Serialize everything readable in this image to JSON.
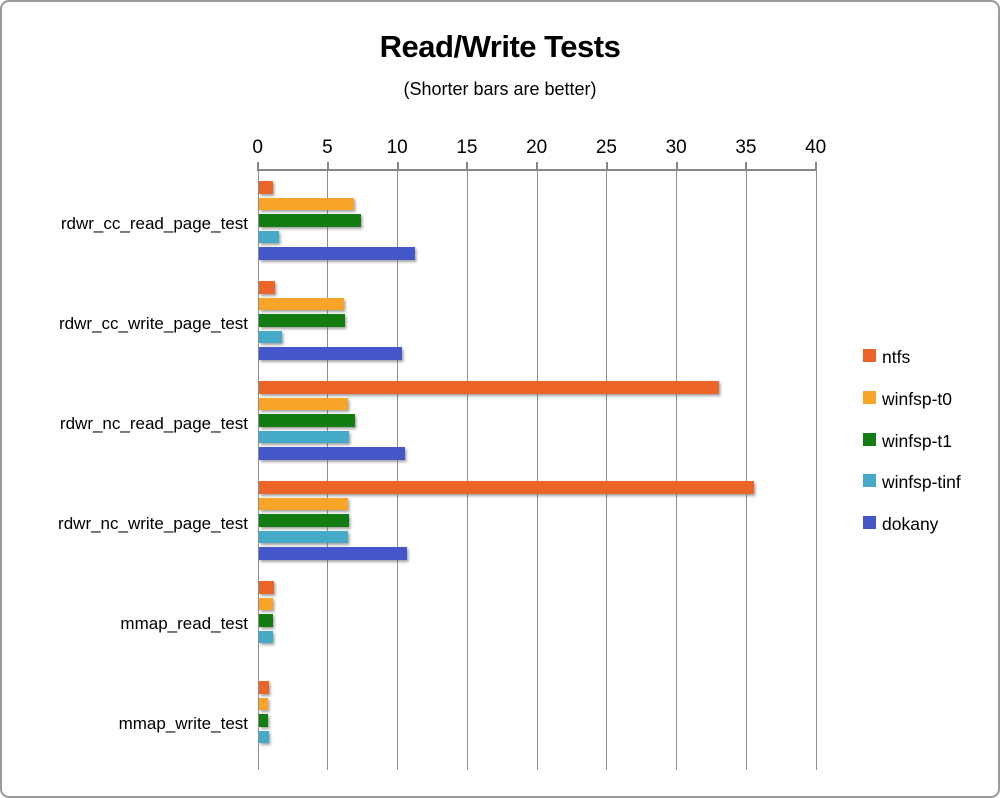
{
  "chart_data": {
    "type": "bar",
    "orientation": "horizontal",
    "title": "Read/Write Tests",
    "subtitle": "(Shorter bars are better)",
    "categories": [
      "rdwr_cc_read_page_test",
      "rdwr_cc_write_page_test",
      "rdwr_nc_read_page_test",
      "rdwr_nc_write_page_test",
      "mmap_read_test",
      "mmap_write_test"
    ],
    "series": [
      {
        "name": "ntfs",
        "color": "#ED6428",
        "values": [
          1.0,
          1.2,
          33.0,
          35.5,
          1.1,
          0.75
        ]
      },
      {
        "name": "winfsp-t0",
        "color": "#F8A428",
        "values": [
          6.8,
          6.1,
          6.4,
          6.4,
          1.0,
          0.7
        ]
      },
      {
        "name": "winfsp-t1",
        "color": "#127B12",
        "values": [
          7.3,
          6.2,
          6.9,
          6.5,
          1.0,
          0.7
        ]
      },
      {
        "name": "winfsp-tinf",
        "color": "#45AAC8",
        "values": [
          1.45,
          1.65,
          6.5,
          6.4,
          1.0,
          0.75
        ]
      },
      {
        "name": "dokany",
        "color": "#4457C8",
        "values": [
          11.2,
          10.3,
          10.5,
          10.6,
          null,
          null
        ]
      }
    ],
    "x_axis": {
      "min": 0,
      "max": 40,
      "step": 5,
      "tick_labels": [
        "0",
        "5",
        "10",
        "15",
        "20",
        "25",
        "30",
        "35",
        "40"
      ]
    },
    "legend": {
      "position": "right",
      "entries": [
        "ntfs",
        "winfsp-t0",
        "winfsp-t1",
        "winfsp-tinf",
        "dokany"
      ]
    },
    "grid": true,
    "gridline_color": "#8e8e8e"
  }
}
